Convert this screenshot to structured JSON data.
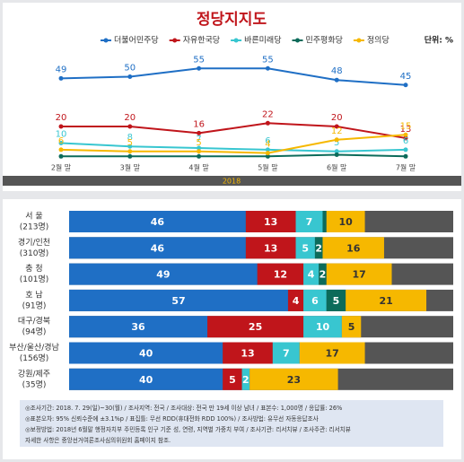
{
  "chart_data": [
    {
      "type": "line",
      "title": "정당지지도",
      "unit": "단위: %",
      "categories": [
        "2월 말",
        "3월 말",
        "4월 말",
        "5월 말",
        "6월 말",
        "7월 말"
      ],
      "band_label": "2018",
      "ylim": [
        0,
        60
      ],
      "series": [
        {
          "name": "더불어민주당",
          "color": "#1f6fc5",
          "values": [
            49,
            50,
            55,
            55,
            48,
            45
          ]
        },
        {
          "name": "자유한국당",
          "color": "#c0151b",
          "values": [
            20,
            20,
            16,
            22,
            20,
            13
          ]
        },
        {
          "name": "바른미래당",
          "color": "#38c6d0",
          "values": [
            10,
            8,
            7,
            6,
            5,
            6
          ]
        },
        {
          "name": "민주평화당",
          "color": "#0c6b5a",
          "values": [
            2,
            2,
            2,
            2,
            3,
            2
          ]
        },
        {
          "name": "정의당",
          "color": "#f6b800",
          "values": [
            6,
            5,
            5,
            4,
            12,
            15
          ]
        }
      ]
    },
    {
      "type": "stacked-barh",
      "categories": [
        "서 울",
        "경기/인천",
        "충 청",
        "호 남",
        "대구/경북",
        "부산/울산/경남",
        "강원/제주"
      ],
      "category_counts": [
        "(213명)",
        "(310명)",
        "(101명)",
        "(91명)",
        "(94명)",
        "(156명)",
        "(35명)"
      ],
      "xlim": [
        0,
        100
      ],
      "series": [
        {
          "name": "더불어민주당",
          "color": "#1f6fc5",
          "values": [
            46,
            46,
            49,
            57,
            36,
            40,
            40
          ]
        },
        {
          "name": "자유한국당",
          "color": "#c0151b",
          "values": [
            13,
            13,
            12,
            4,
            25,
            13,
            5
          ]
        },
        {
          "name": "바른미래당",
          "color": "#38c6d0",
          "values": [
            7,
            5,
            4,
            6,
            10,
            7,
            2
          ]
        },
        {
          "name": "민주평화당",
          "color": "#0c6b5a",
          "values": [
            1,
            2,
            2,
            5,
            0,
            0,
            0
          ]
        },
        {
          "name": "정의당",
          "color": "#f6b800",
          "values": [
            10,
            16,
            17,
            21,
            5,
            17,
            23
          ]
        }
      ]
    }
  ],
  "notes": [
    "◎조사기간: 2018. 7. 29(일)~30(월) / 조사지역: 전국 / 조사대상: 전국 만 19세 이상 남녀 / 표본수: 1,000명 / 응답률: 26%",
    "◎표본오차: 95% 신뢰수준에 ±3.1%p / 표집틀: 무선 RDD(휴대전화 RDD 100%) / 조사방법: 유무선 자동응답조사",
    "◎보정방법: 2018년 6월말 행정자치부 주민등록 인구 기준 성, 연령, 지역별 가중치 부여 / 조사기관: 리서치뷰 / 조사주관: 리서치뷰",
    "자세한 사항은 중앙선거여론조사심의위원회 홈페이지 참조."
  ]
}
